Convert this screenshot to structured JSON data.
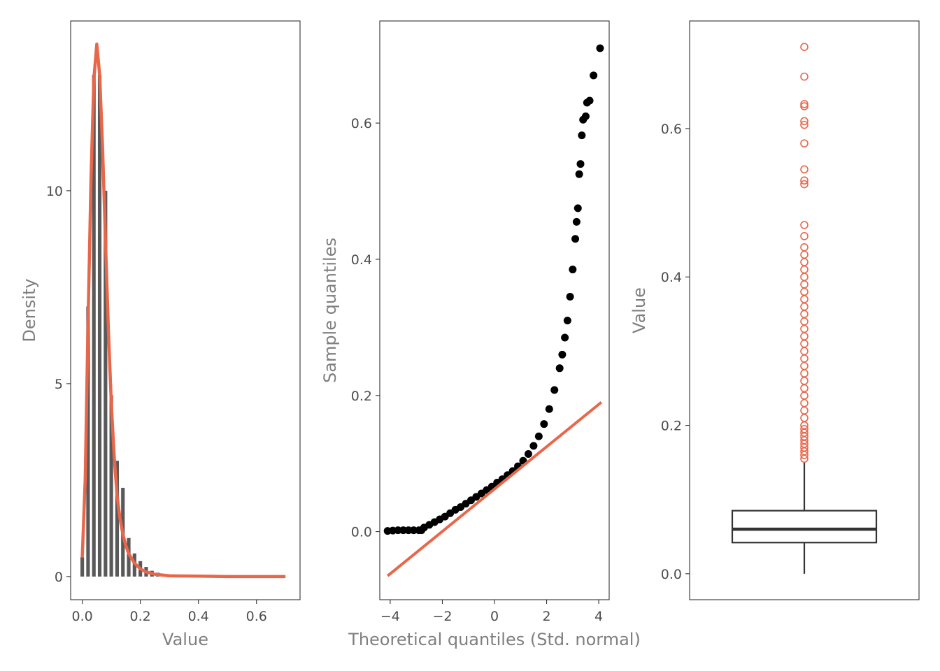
{
  "colors": {
    "accent": "#E8674A",
    "bars": "#595959",
    "points": "#000000",
    "box": "#333333",
    "frame": "#333333"
  },
  "chart_data": [
    {
      "type": "bar",
      "subtype": "histogram-with-density",
      "title": "",
      "xlabel": "Value",
      "ylabel": "Density",
      "xlim": [
        -0.04,
        0.75
      ],
      "ylim": [
        -0.6,
        14.4
      ],
      "xticks": [
        0.0,
        0.2,
        0.4,
        0.6
      ],
      "xtick_labels": [
        "0.0",
        "0.2",
        "0.4",
        "0.6"
      ],
      "yticks": [
        0,
        5,
        10
      ],
      "ytick_labels": [
        "0",
        "5",
        "10"
      ],
      "grid": false,
      "histogram": {
        "bin_width": 0.02,
        "bin_centers": [
          0.0,
          0.02,
          0.04,
          0.06,
          0.08,
          0.1,
          0.12,
          0.14,
          0.16,
          0.18,
          0.2,
          0.22,
          0.24,
          0.26,
          0.28,
          0.3
        ],
        "densities": [
          0.5,
          7.0,
          13.0,
          13.0,
          10.0,
          4.7,
          3.0,
          2.3,
          1.0,
          0.6,
          0.4,
          0.25,
          0.15,
          0.1,
          0.05,
          0.03
        ]
      },
      "density_curve": {
        "x": [
          0.0,
          0.01,
          0.02,
          0.03,
          0.04,
          0.05,
          0.06,
          0.07,
          0.08,
          0.09,
          0.1,
          0.11,
          0.12,
          0.13,
          0.14,
          0.15,
          0.16,
          0.18,
          0.2,
          0.22,
          0.25,
          0.3,
          0.4,
          0.5,
          0.6,
          0.7
        ],
        "y": [
          0.5,
          2.5,
          6.6,
          10.3,
          12.9,
          13.8,
          13.0,
          11.1,
          8.7,
          6.4,
          4.5,
          3.1,
          2.1,
          1.5,
          1.1,
          0.8,
          0.6,
          0.35,
          0.2,
          0.12,
          0.06,
          0.02,
          0.01,
          0.0,
          0.0,
          0.0
        ]
      }
    },
    {
      "type": "scatter",
      "subtype": "qq-plot",
      "title": "",
      "xlabel": "Theoretical quantiles (Std. normal)",
      "ylabel": "Sample quantiles",
      "xlim": [
        -4.4,
        4.4
      ],
      "ylim": [
        -0.1,
        0.75
      ],
      "xticks": [
        -4,
        -2,
        0,
        2,
        4
      ],
      "xtick_labels": [
        "−4",
        "−2",
        "0",
        "2",
        "4"
      ],
      "yticks": [
        0.0,
        0.2,
        0.4,
        0.6
      ],
      "ytick_labels": [
        "0.0",
        "0.2",
        "0.4",
        "0.6"
      ],
      "grid": false,
      "points": {
        "x": [
          -4.1,
          -3.9,
          -3.7,
          -3.5,
          -3.3,
          -3.1,
          -2.9,
          -2.8,
          -2.7,
          -2.5,
          -2.3,
          -2.1,
          -1.9,
          -1.7,
          -1.5,
          -1.3,
          -1.1,
          -0.9,
          -0.7,
          -0.5,
          -0.3,
          -0.1,
          0.1,
          0.3,
          0.5,
          0.7,
          0.9,
          1.1,
          1.3,
          1.5,
          1.7,
          1.9,
          2.1,
          2.3,
          2.5,
          2.6,
          2.7,
          2.8,
          2.9,
          3.0,
          3.1,
          3.15,
          3.2,
          3.25,
          3.3,
          3.35,
          3.4,
          3.5,
          3.55,
          3.65,
          3.8,
          4.05
        ],
        "y": [
          0.001,
          0.0015,
          0.002,
          0.002,
          0.002,
          0.002,
          0.002,
          0.002,
          0.006,
          0.01,
          0.014,
          0.018,
          0.022,
          0.027,
          0.032,
          0.036,
          0.041,
          0.046,
          0.051,
          0.056,
          0.061,
          0.066,
          0.072,
          0.077,
          0.083,
          0.089,
          0.096,
          0.104,
          0.114,
          0.126,
          0.14,
          0.158,
          0.18,
          0.208,
          0.24,
          0.26,
          0.285,
          0.31,
          0.345,
          0.385,
          0.43,
          0.455,
          0.475,
          0.525,
          0.54,
          0.582,
          0.605,
          0.61,
          0.63,
          0.633,
          0.67,
          0.71
        ]
      },
      "reference_line": {
        "x": [
          -4.1,
          4.1
        ],
        "y": [
          -0.065,
          0.19
        ]
      }
    },
    {
      "type": "boxplot",
      "title": "",
      "xlabel": "",
      "ylabel": "Value",
      "ylim": [
        -0.035,
        0.745
      ],
      "yticks": [
        0.0,
        0.2,
        0.4,
        0.6
      ],
      "ytick_labels": [
        "0.0",
        "0.2",
        "0.4",
        "0.6"
      ],
      "grid": false,
      "box": {
        "min": 0.0,
        "q1": 0.042,
        "median": 0.06,
        "q3": 0.085,
        "whisker_high": 0.15
      },
      "outliers": [
        0.155,
        0.16,
        0.165,
        0.17,
        0.175,
        0.18,
        0.185,
        0.19,
        0.195,
        0.2,
        0.21,
        0.22,
        0.23,
        0.24,
        0.25,
        0.26,
        0.27,
        0.28,
        0.29,
        0.3,
        0.31,
        0.32,
        0.33,
        0.34,
        0.35,
        0.36,
        0.37,
        0.38,
        0.39,
        0.4,
        0.41,
        0.42,
        0.43,
        0.44,
        0.455,
        0.47,
        0.525,
        0.53,
        0.545,
        0.58,
        0.605,
        0.61,
        0.63,
        0.633,
        0.67,
        0.71
      ]
    }
  ]
}
